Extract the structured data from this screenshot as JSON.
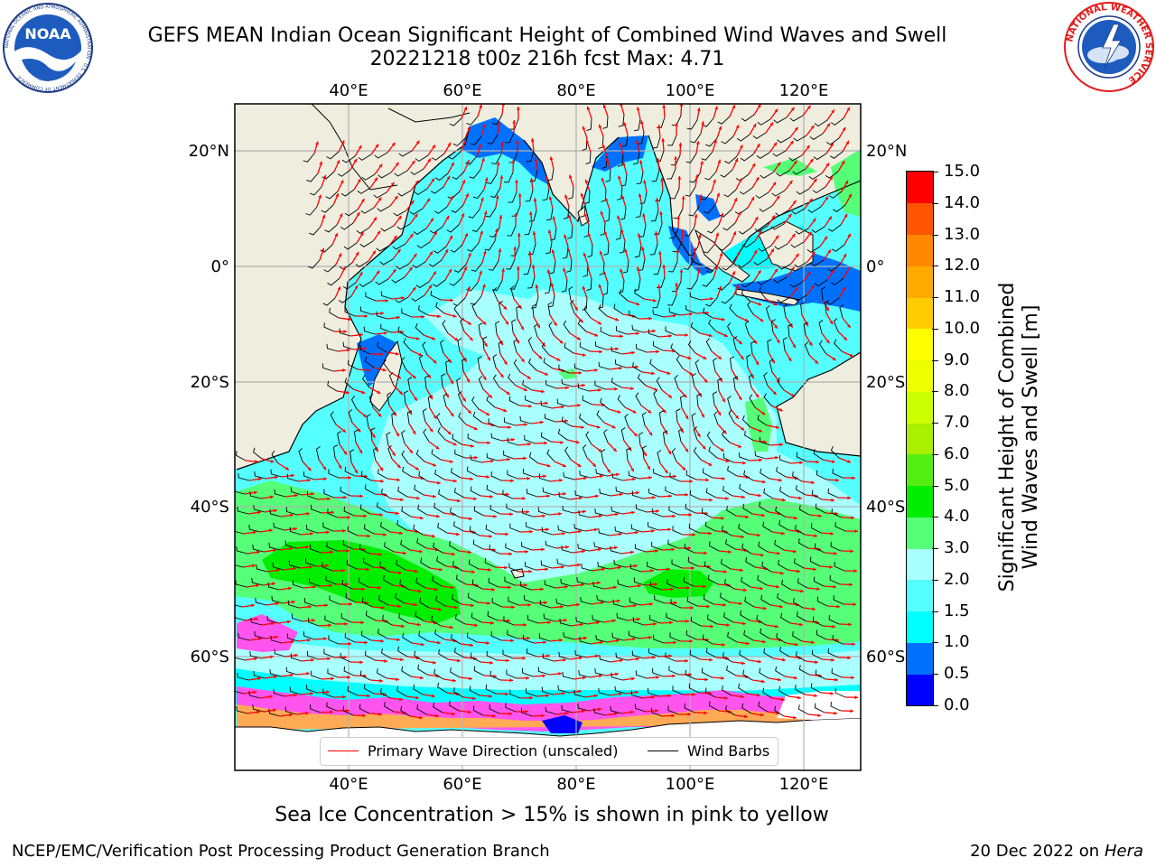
{
  "title": {
    "line1": "GEFS MEAN Indian Ocean Significant Height of Combined Wind Waves and Swell",
    "line2": "20221218 t00z 216h fcst   Max: 4.71"
  },
  "logos": {
    "noaa": "NOAA",
    "noaa_ring": "NATIONAL OCEANIC AND ATMOSPHERIC ADMINISTRATION · U.S. DEPARTMENT OF COMMERCE",
    "nws_ring": "NATIONAL WEATHER SERVICE"
  },
  "map": {
    "lon_ticks": [
      "40°E",
      "60°E",
      "80°E",
      "100°E",
      "120°E"
    ],
    "lat_ticks_left": [
      "20°N",
      "0°",
      "20°S",
      "40°S",
      "60°S"
    ],
    "lat_ticks_right": [
      "20°N",
      "0°",
      "20°S",
      "40°S",
      "60°S"
    ],
    "land_color": "#efedde",
    "gridlines": true
  },
  "legend": {
    "wave_direction": "Primary Wave Direction (unscaled)",
    "wind_barbs": "Wind Barbs",
    "wave_color": "#ff0000",
    "barb_color": "#000000",
    "placement": "lower-center"
  },
  "colorbar": {
    "title_line1": "Significant Height of Combined",
    "title_line2": "Wind Waves and Swell [m]",
    "labels": [
      "0.0",
      "0.5",
      "1.0",
      "1.5",
      "2.0",
      "3.0",
      "4.0",
      "5.0",
      "6.0",
      "7.0",
      "8.0",
      "9.0",
      "10.0",
      "11.0",
      "12.0",
      "13.0",
      "14.0",
      "15.0"
    ],
    "colors": [
      "#0000ff",
      "#0070ff",
      "#00ffff",
      "#55ffff",
      "#aaffff",
      "#55ff77",
      "#00ee00",
      "#55ee11",
      "#aaee00",
      "#ccff00",
      "#eeff00",
      "#ffff00",
      "#ffcc00",
      "#ffaa00",
      "#ff8800",
      "#ff5500",
      "#ff0000"
    ]
  },
  "sea_ice_note": "Sea Ice Concentration > 15% is shown in pink to yellow",
  "footer": {
    "left": "NCEP/EMC/Verification Post Processing Product Generation Branch",
    "right_date": "20 Dec 2022 on",
    "right_machine": "Hera"
  }
}
